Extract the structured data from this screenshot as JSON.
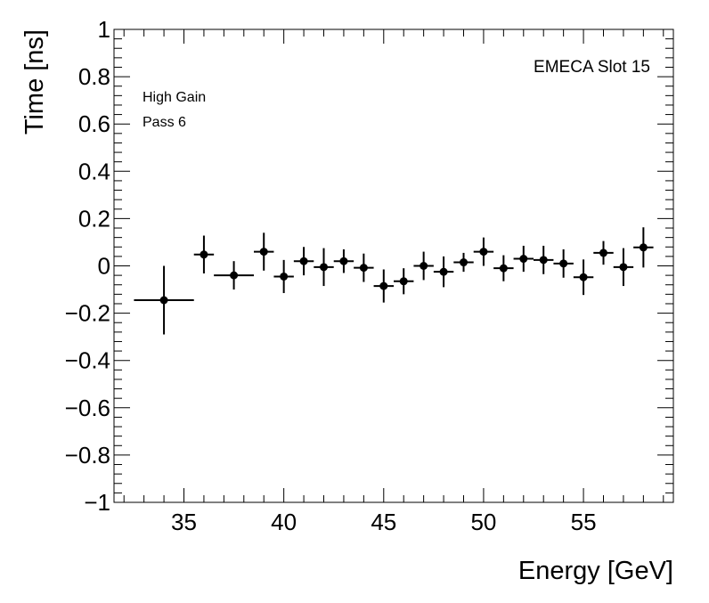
{
  "chart_data": {
    "type": "scatter",
    "xlabel": "Energy [GeV]",
    "ylabel": "Time [ns]",
    "xlim": [
      31.5,
      59.5
    ],
    "ylim": [
      -1,
      1
    ],
    "x_ticks": [
      35,
      40,
      45,
      50,
      55
    ],
    "y_ticks": [
      -1,
      -0.8,
      -0.6,
      -0.4,
      -0.2,
      0,
      0.2,
      0.4,
      0.6,
      0.8,
      1
    ],
    "y_tick_labels": [
      "−1",
      "−0.8",
      "−0.6",
      "−0.4",
      "−0.2",
      "0",
      "0.2",
      "0.4",
      "0.6",
      "0.8",
      "1"
    ],
    "annotations": {
      "top_right": "EMECA Slot 15",
      "line1": "High Gain",
      "line2": "Pass 6"
    },
    "grid": false,
    "marker_color": "#000000",
    "points": [
      {
        "x": 34.0,
        "y": -0.145,
        "xerr": 1.5,
        "yerr": 0.145
      },
      {
        "x": 36.0,
        "y": 0.048,
        "xerr": 0.5,
        "yerr": 0.08
      },
      {
        "x": 37.5,
        "y": -0.04,
        "xerr": 1.0,
        "yerr": 0.06
      },
      {
        "x": 39.0,
        "y": 0.06,
        "xerr": 0.5,
        "yerr": 0.08
      },
      {
        "x": 40.0,
        "y": -0.045,
        "xerr": 0.5,
        "yerr": 0.07
      },
      {
        "x": 41.0,
        "y": 0.02,
        "xerr": 0.5,
        "yerr": 0.06
      },
      {
        "x": 42.0,
        "y": -0.005,
        "xerr": 0.5,
        "yerr": 0.08
      },
      {
        "x": 43.0,
        "y": 0.02,
        "xerr": 0.5,
        "yerr": 0.05
      },
      {
        "x": 44.0,
        "y": -0.008,
        "xerr": 0.5,
        "yerr": 0.06
      },
      {
        "x": 45.0,
        "y": -0.085,
        "xerr": 0.5,
        "yerr": 0.07
      },
      {
        "x": 46.0,
        "y": -0.065,
        "xerr": 0.5,
        "yerr": 0.055
      },
      {
        "x": 47.0,
        "y": 0.0,
        "xerr": 0.5,
        "yerr": 0.06
      },
      {
        "x": 48.0,
        "y": -0.025,
        "xerr": 0.5,
        "yerr": 0.065
      },
      {
        "x": 49.0,
        "y": 0.015,
        "xerr": 0.5,
        "yerr": 0.04
      },
      {
        "x": 50.0,
        "y": 0.06,
        "xerr": 0.5,
        "yerr": 0.06
      },
      {
        "x": 51.0,
        "y": -0.01,
        "xerr": 0.5,
        "yerr": 0.055
      },
      {
        "x": 52.0,
        "y": 0.03,
        "xerr": 0.5,
        "yerr": 0.055
      },
      {
        "x": 53.0,
        "y": 0.025,
        "xerr": 0.5,
        "yerr": 0.06
      },
      {
        "x": 54.0,
        "y": 0.01,
        "xerr": 0.5,
        "yerr": 0.06
      },
      {
        "x": 55.0,
        "y": -0.048,
        "xerr": 0.5,
        "yerr": 0.075
      },
      {
        "x": 56.0,
        "y": 0.055,
        "xerr": 0.5,
        "yerr": 0.05
      },
      {
        "x": 57.0,
        "y": -0.005,
        "xerr": 0.5,
        "yerr": 0.08
      },
      {
        "x": 58.0,
        "y": 0.078,
        "xerr": 0.5,
        "yerr": 0.085
      }
    ]
  }
}
